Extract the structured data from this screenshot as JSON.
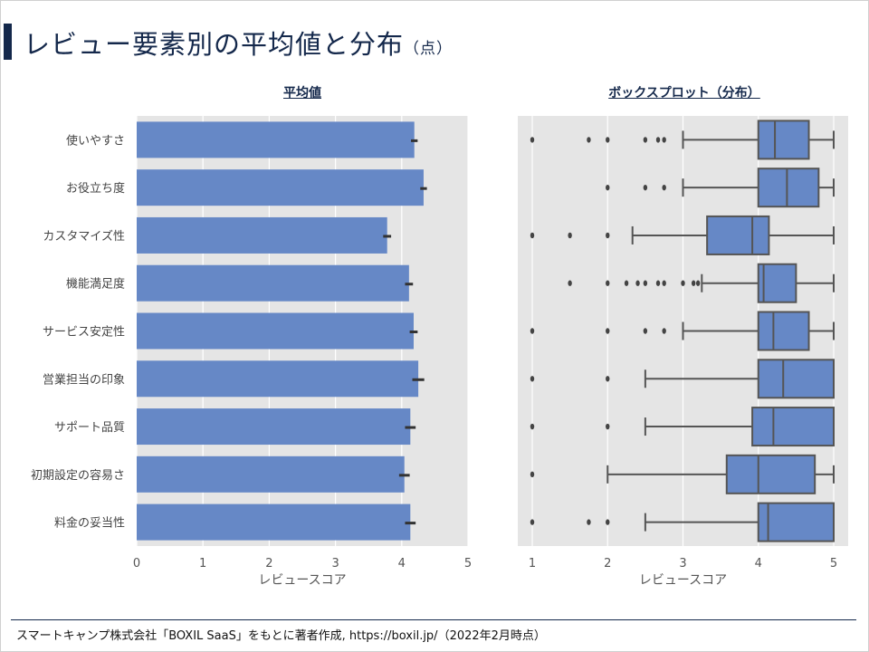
{
  "header": {
    "title": "レビュー要素別の平均値と分布",
    "title_unit": "（点）"
  },
  "footer": {
    "source": "スマートキャンプ株式会社「BOXIL SaaS」をもとに著者作成, https://boxil.jp/（2022年2月時点）"
  },
  "colors": {
    "bar": "#6688c6",
    "box": "#6688c6",
    "plot_bg": "#e5e5e5",
    "grid": "#ffffff",
    "title": "#14284b",
    "edge": "#555555"
  },
  "chart_data": [
    {
      "type": "bar",
      "orientation": "horizontal",
      "title": "平均値",
      "xlabel": "レビュースコア",
      "xlim": [
        0,
        5
      ],
      "xticks": [
        "0",
        "1",
        "2",
        "3",
        "4",
        "5"
      ],
      "grid": true,
      "categories": [
        "使いやすさ",
        "お役立ち度",
        "カスタマイズ性",
        "機能満足度",
        "サービス安定性",
        "営業担当の印象",
        "サポート品質",
        "初期設定の容易さ",
        "料金の妥当性"
      ],
      "values": [
        4.19,
        4.33,
        3.78,
        4.11,
        4.18,
        4.25,
        4.13,
        4.04,
        4.13
      ],
      "error": [
        0.05,
        0.05,
        0.06,
        0.06,
        0.06,
        0.09,
        0.08,
        0.08,
        0.08
      ]
    },
    {
      "type": "box",
      "orientation": "horizontal",
      "title": "ボックスプロット（分布）",
      "xlabel": "レビュースコア",
      "xlim": [
        1,
        5
      ],
      "xticks": [
        "1",
        "2",
        "3",
        "4",
        "5"
      ],
      "grid": true,
      "categories": [
        "使いやすさ",
        "お役立ち度",
        "カスタマイズ性",
        "機能満足度",
        "サービス安定性",
        "営業担当の印象",
        "サポート品質",
        "初期設定の容易さ",
        "料金の妥当性"
      ],
      "boxes": [
        {
          "whislo": 3.0,
          "q1": 4.0,
          "med": 4.22,
          "q3": 4.67,
          "whishi": 5.0,
          "fliers": [
            1,
            1.75,
            2,
            2.5,
            2.67,
            2.75
          ]
        },
        {
          "whislo": 3.0,
          "q1": 4.0,
          "med": 4.38,
          "q3": 4.8,
          "whishi": 5.0,
          "fliers": [
            2,
            2.5,
            2.75
          ]
        },
        {
          "whislo": 2.33,
          "q1": 3.32,
          "med": 3.92,
          "q3": 4.14,
          "whishi": 5.0,
          "fliers": [
            1,
            1.5,
            2
          ]
        },
        {
          "whislo": 3.25,
          "q1": 4.0,
          "med": 4.07,
          "q3": 4.5,
          "whishi": 5.0,
          "fliers": [
            1.5,
            2,
            2.25,
            2.4,
            2.5,
            2.67,
            2.75,
            3.0,
            3.14,
            3.2
          ]
        },
        {
          "whislo": 3.0,
          "q1": 4.0,
          "med": 4.2,
          "q3": 4.67,
          "whishi": 5.0,
          "fliers": [
            1,
            2,
            2.5,
            2.75
          ]
        },
        {
          "whislo": 2.5,
          "q1": 4.0,
          "med": 4.33,
          "q3": 5.0,
          "whishi": 5.0,
          "fliers": [
            1,
            2
          ]
        },
        {
          "whislo": 2.5,
          "q1": 3.92,
          "med": 4.2,
          "q3": 5.0,
          "whishi": 5.0,
          "fliers": [
            1,
            2
          ]
        },
        {
          "whislo": 2.0,
          "q1": 3.58,
          "med": 4.0,
          "q3": 4.75,
          "whishi": 5.0,
          "fliers": [
            1
          ]
        },
        {
          "whislo": 2.5,
          "q1": 4.0,
          "med": 4.13,
          "q3": 5.0,
          "whishi": 5.0,
          "fliers": [
            1,
            1.75,
            2
          ]
        }
      ]
    }
  ]
}
